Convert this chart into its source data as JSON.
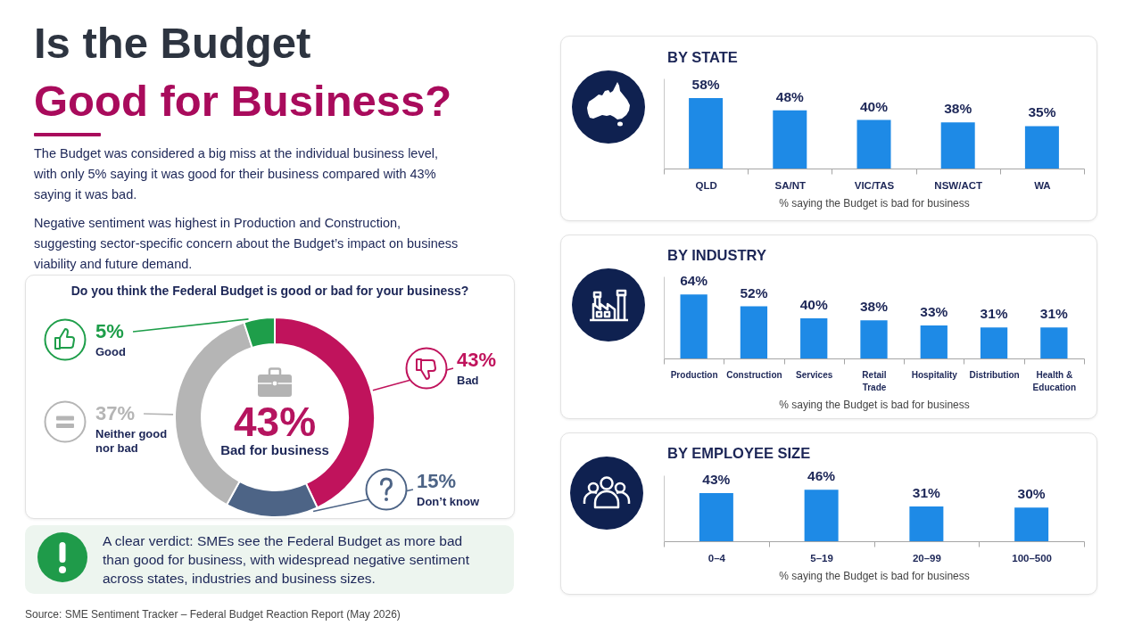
{
  "chart_data": [
    {
      "type": "other",
      "title": "Is the Budget",
      "subtitle": "Good for Business?",
      "annotations": [
        "The Budget was considered a big miss at the individual business level, with only 5% saying it was good for their business compared with 43% saying it was bad.",
        "Negative sentiment was highest in Production and Construction, suggesting sector-specific concern about the Budget’s impact on business viability and future demand."
      ]
    },
    {
      "type": "donut",
      "title": "Do you think the Federal Budget is good or bad for your business?",
      "categories": [
        "Bad",
        "Don’t know",
        "Neither good nor bad",
        "Good"
      ],
      "values": [
        43,
        15,
        37,
        5
      ],
      "colors": [
        "#c0135c",
        "#4d6486",
        "#b5b5b5",
        "#1e9e4a"
      ],
      "value_labels": [
        "43%",
        "15%",
        "37%",
        "5%"
      ],
      "annotations": [
        "43%",
        "Bad for business"
      ]
    },
    {
      "type": "other",
      "annotations": [
        "A clear verdict: SMEs see the Federal Budget as more bad than good for business, with widespread negative sentiment across states, industries and business sizes.",
        "Source: SME Sentiment Tracker – Federal Budget Reaction Report (May 2026)"
      ]
    },
    {
      "type": "bar",
      "title": "BY STATE",
      "categories": [
        "QLD",
        "SA/NT",
        "VIC/TAS",
        "NSW/ACT",
        "WA"
      ],
      "values": [
        58,
        48,
        40,
        38,
        35
      ],
      "value_labels": [
        "58%",
        "48%",
        "40%",
        "38%",
        "35%"
      ],
      "color": "#1e8ae6",
      "xlabel": "% saying the Budget is bad for business",
      "tick_labels": "x"
    },
    {
      "type": "bar",
      "title": "BY INDUSTRY",
      "categories": [
        "Production",
        "Construction",
        "Services",
        "Retail Trade",
        "Hospitality",
        "Distribution",
        "Health & Education"
      ],
      "values": [
        64,
        52,
        40,
        38,
        33,
        31,
        31
      ],
      "value_labels": [
        "64%",
        "52%",
        "40%",
        "38%",
        "33%",
        "31%",
        "31%"
      ],
      "color": "#1e8ae6",
      "xlabel": "% saying the Budget is bad for business",
      "tick_labels": "x"
    },
    {
      "type": "bar",
      "title": "BY EMPLOYEE SIZE",
      "categories": [
        "0–4",
        "5–19",
        "20–99",
        "100–500"
      ],
      "values": [
        43,
        46,
        31,
        30
      ],
      "value_labels": [
        "43%",
        "46%",
        "31%",
        "30%"
      ],
      "color": "#1e8ae6",
      "xlabel": "% saying the Budget is bad for business",
      "tick_labels": "x"
    }
  ]
}
